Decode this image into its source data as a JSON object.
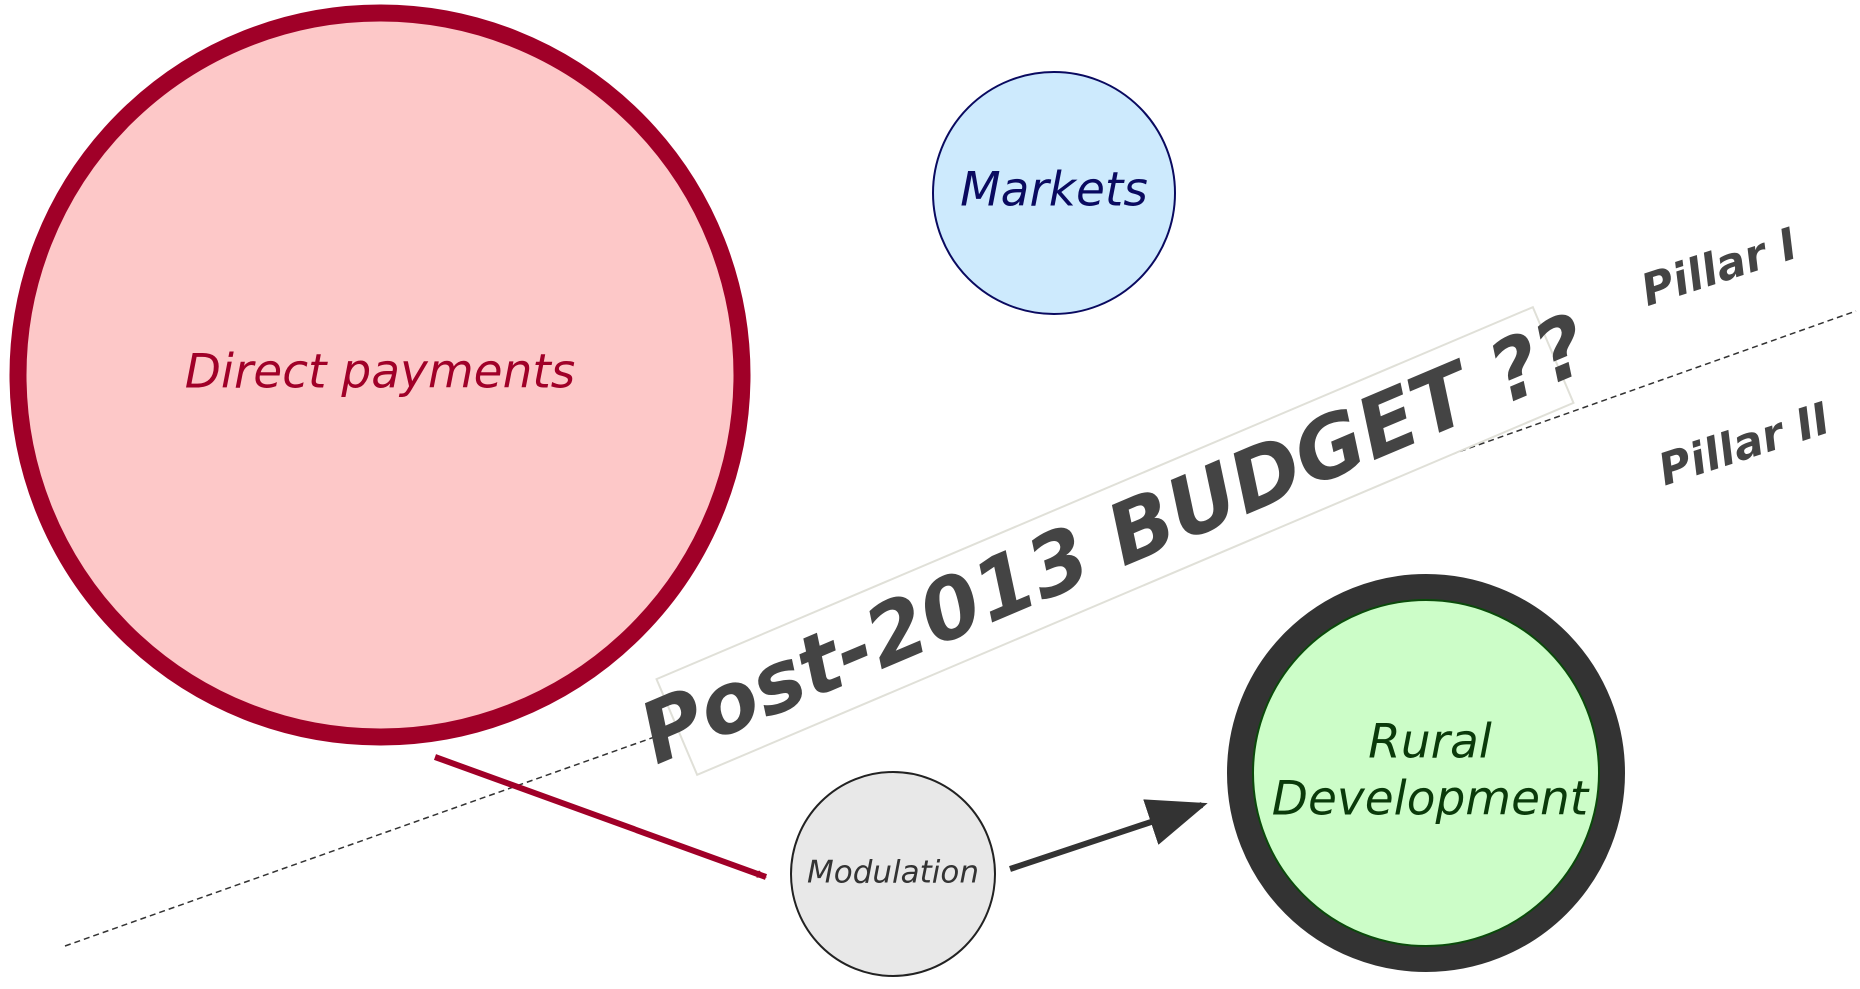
{
  "nodes": [
    {
      "label": "Direct payments"
    },
    {
      "label": "Markets"
    },
    {
      "label": "Modulation"
    },
    {
      "label": "Rural Development",
      "lines": [
        "Rural",
        "Development"
      ]
    }
  ],
  "banner": "Post-2013 BUDGET ??",
  "pillars": [
    "Pillar I",
    "Pillar II"
  ]
}
